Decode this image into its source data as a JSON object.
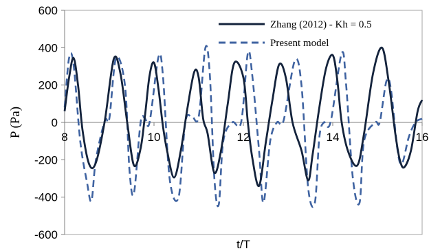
{
  "chart_data": {
    "type": "line",
    "xlabel": "t/T",
    "ylabel": "P (Pa)",
    "xlim": [
      8,
      16
    ],
    "ylim": [
      -600,
      600
    ],
    "x_ticks": [
      "8",
      "10",
      "12",
      "14",
      "16"
    ],
    "y_ticks": [
      "600",
      "400",
      "200",
      "0",
      "-200",
      "-400",
      "-600"
    ],
    "grid": false,
    "legend_position": "top-right",
    "series": [
      {
        "name": "Zhang (2012) - Kh = 0.5",
        "style": "solid",
        "color": "#14233c",
        "x": [
          8.0,
          8.1,
          8.2,
          8.3,
          8.4,
          8.55,
          8.7,
          8.9,
          9.1,
          9.25,
          9.4,
          9.55,
          9.7,
          9.8,
          9.9,
          10.0,
          10.1,
          10.2,
          10.3,
          10.45,
          10.6,
          10.75,
          10.9,
          11.0,
          11.1,
          11.2,
          11.35,
          11.5,
          11.65,
          11.8,
          12.0,
          12.1,
          12.2,
          12.35,
          12.5,
          12.65,
          12.8,
          12.95,
          13.1,
          13.3,
          13.45,
          13.55,
          13.7,
          13.85,
          14.0,
          14.1,
          14.2,
          14.35,
          14.55,
          14.7,
          14.9,
          15.1,
          15.25,
          15.4,
          15.5,
          15.6,
          15.75,
          15.9,
          16.0
        ],
        "values": [
          60,
          240,
          345,
          200,
          -40,
          -225,
          -215,
          10,
          340,
          260,
          0,
          -230,
          -140,
          40,
          250,
          320,
          180,
          -20,
          -160,
          -295,
          -150,
          80,
          270,
          240,
          20,
          -60,
          -270,
          -150,
          100,
          320,
          240,
          0,
          -190,
          -340,
          -110,
          120,
          310,
          240,
          0,
          -150,
          -310,
          -170,
          80,
          290,
          360,
          230,
          0,
          -160,
          -230,
          -60,
          260,
          400,
          220,
          -60,
          -200,
          -240,
          -150,
          60,
          120
        ]
      },
      {
        "name": "Present model",
        "style": "dashed",
        "color": "#3f63a1",
        "x": [
          8.0,
          8.1,
          8.2,
          8.35,
          8.5,
          8.6,
          8.7,
          8.9,
          9.0,
          9.15,
          9.35,
          9.45,
          9.55,
          9.7,
          9.8,
          9.9,
          10.1,
          10.2,
          10.35,
          10.55,
          10.7,
          10.85,
          11.0,
          11.15,
          11.25,
          11.35,
          11.45,
          11.55,
          11.75,
          11.95,
          12.1,
          12.2,
          12.35,
          12.45,
          12.6,
          12.75,
          12.9,
          13.15,
          13.3,
          13.45,
          13.6,
          13.7,
          13.8,
          13.95,
          14.2,
          14.3,
          14.45,
          14.6,
          14.7,
          14.95,
          15.05,
          15.2,
          15.3,
          15.45,
          15.55,
          15.7,
          15.85,
          16.0
        ],
        "values": [
          80,
          345,
          310,
          -100,
          -320,
          -420,
          -200,
          10,
          20,
          345,
          200,
          -250,
          -380,
          0,
          20,
          0,
          350,
          250,
          -300,
          -400,
          0,
          30,
          30,
          400,
          250,
          -300,
          -440,
          -100,
          0,
          0,
          370,
          250,
          -150,
          -430,
          -100,
          0,
          10,
          330,
          200,
          -350,
          -430,
          -80,
          0,
          0,
          370,
          200,
          -300,
          -430,
          -100,
          0,
          0,
          220,
          180,
          -150,
          -220,
          -80,
          0,
          20
        ]
      }
    ]
  }
}
